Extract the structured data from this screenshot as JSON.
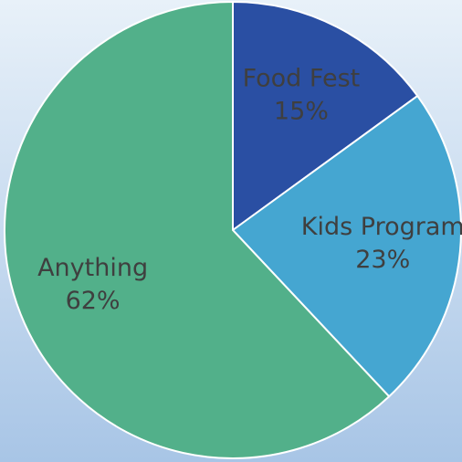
{
  "chart_data": {
    "type": "pie",
    "categories": [
      "Food Fest",
      "Kids Program",
      "Anything"
    ],
    "values": [
      15,
      23,
      62
    ],
    "value_labels": [
      "15%",
      "23%",
      "62%"
    ],
    "colors": [
      "#2a4fa3",
      "#45a6d1",
      "#52b08a"
    ]
  }
}
